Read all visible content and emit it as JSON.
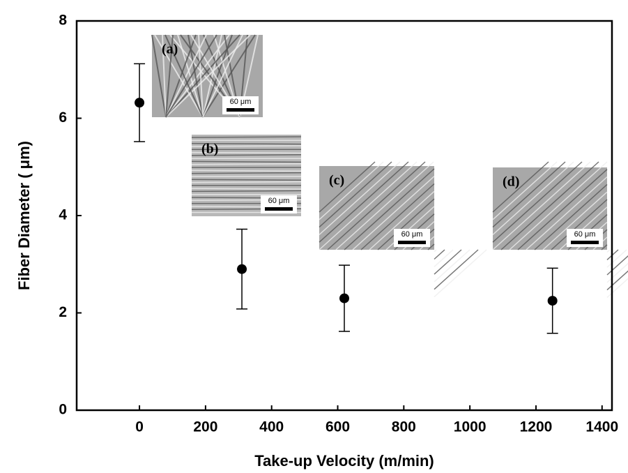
{
  "chart_data": {
    "type": "scatter",
    "x_label": "Take-up Velocity (m/min)",
    "y_label": "Fiber Diameter ( μm)",
    "series": [
      {
        "x": [
          0,
          310,
          620,
          1250
        ],
        "values": [
          6.32,
          2.9,
          2.3,
          2.25
        ],
        "errors": [
          0.8,
          0.82,
          0.68,
          0.67
        ],
        "color": "#000000"
      }
    ],
    "xlim": [
      -190,
      1430
    ],
    "xticks": [
      0,
      200,
      400,
      600,
      800,
      1000,
      1200,
      1400
    ],
    "ylim": [
      0,
      8
    ],
    "yticks": [
      0,
      2,
      4,
      6,
      8
    ],
    "insets": [
      {
        "label": "(a)",
        "scale": "60 μm"
      },
      {
        "label": "(b)",
        "scale": "60 μm"
      },
      {
        "label": "(c)",
        "scale": "60 μm"
      },
      {
        "label": "(d)",
        "scale": "60 μm"
      }
    ]
  }
}
